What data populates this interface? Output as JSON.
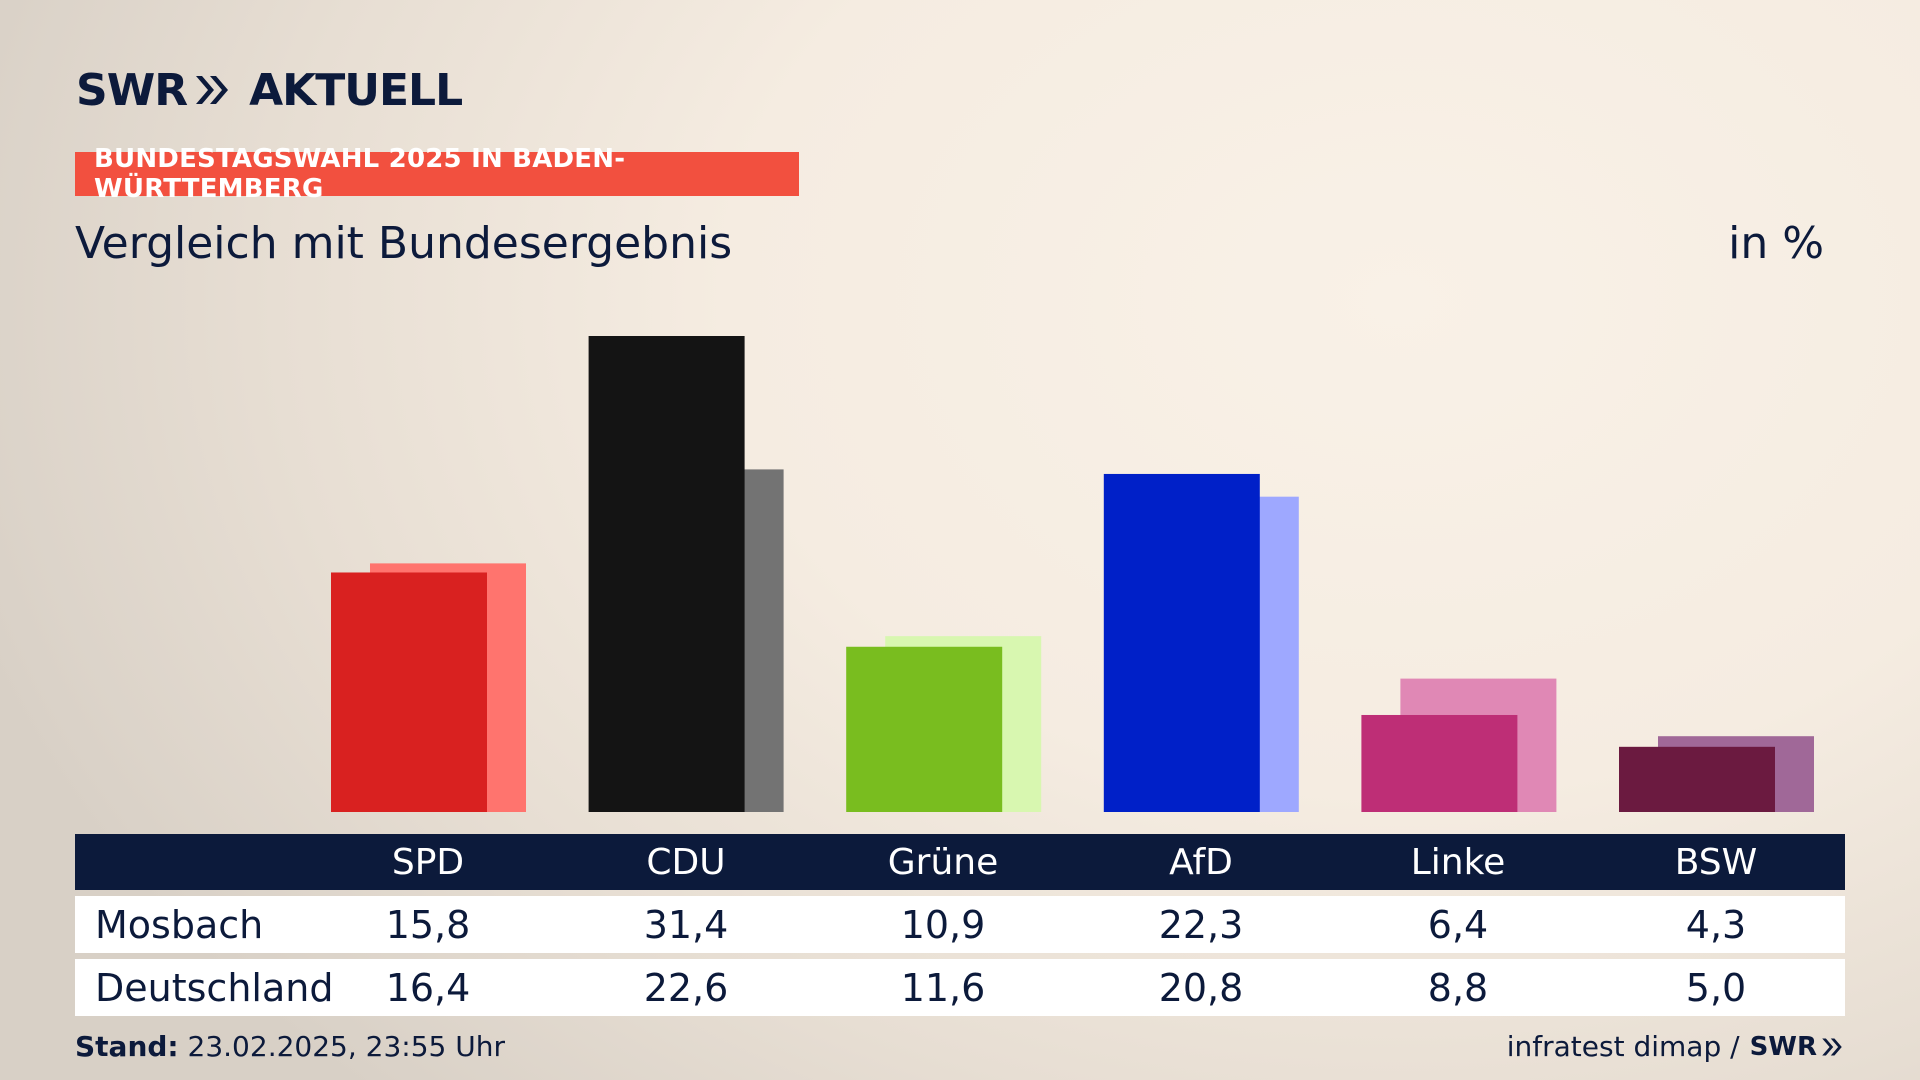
{
  "brand": {
    "logo_left": "SWR",
    "logo_right": "AKTUELL"
  },
  "banner": {
    "text": "BUNDESTAGSWAHL 2025 IN BADEN-WÜRTTEMBERG",
    "color": "#f2503f"
  },
  "subtitle": "Vergleich mit Bundesergebnis",
  "unit": "in %",
  "chart_data": {
    "type": "bar",
    "categories": [
      "SPD",
      "CDU",
      "Grüne",
      "AfD",
      "Linke",
      "BSW"
    ],
    "series": [
      {
        "name": "Mosbach",
        "values": [
          15.8,
          31.4,
          10.9,
          22.3,
          6.4,
          4.3
        ]
      },
      {
        "name": "Deutschland",
        "values": [
          16.4,
          22.6,
          11.6,
          20.8,
          8.8,
          5.0
        ]
      }
    ],
    "colors_primary": [
      "#d92120",
      "#141414",
      "#79bd1f",
      "#0020c8",
      "#be2e76",
      "#6b1a40"
    ],
    "colors_secondary": [
      "#ff746e",
      "#737373",
      "#d8f7b0",
      "#9ea8ff",
      "#e088b5",
      "#a06898"
    ],
    "ylim": [
      0,
      31.4
    ]
  },
  "table": {
    "headers": [
      "SPD",
      "CDU",
      "Grüne",
      "AfD",
      "Linke",
      "BSW"
    ],
    "rows": [
      {
        "label": "Mosbach",
        "values": [
          "15,8",
          "31,4",
          "10,9",
          "22,3",
          "6,4",
          "4,3"
        ]
      },
      {
        "label": "Deutschland",
        "values": [
          "16,4",
          "22,6",
          "11,6",
          "20,8",
          "8,8",
          "5,0"
        ]
      }
    ]
  },
  "footer": {
    "stand_label": "Stand:",
    "stand_value": "23.02.2025, 23:55 Uhr",
    "source": "infratest dimap /",
    "source_logo": "SWR"
  }
}
